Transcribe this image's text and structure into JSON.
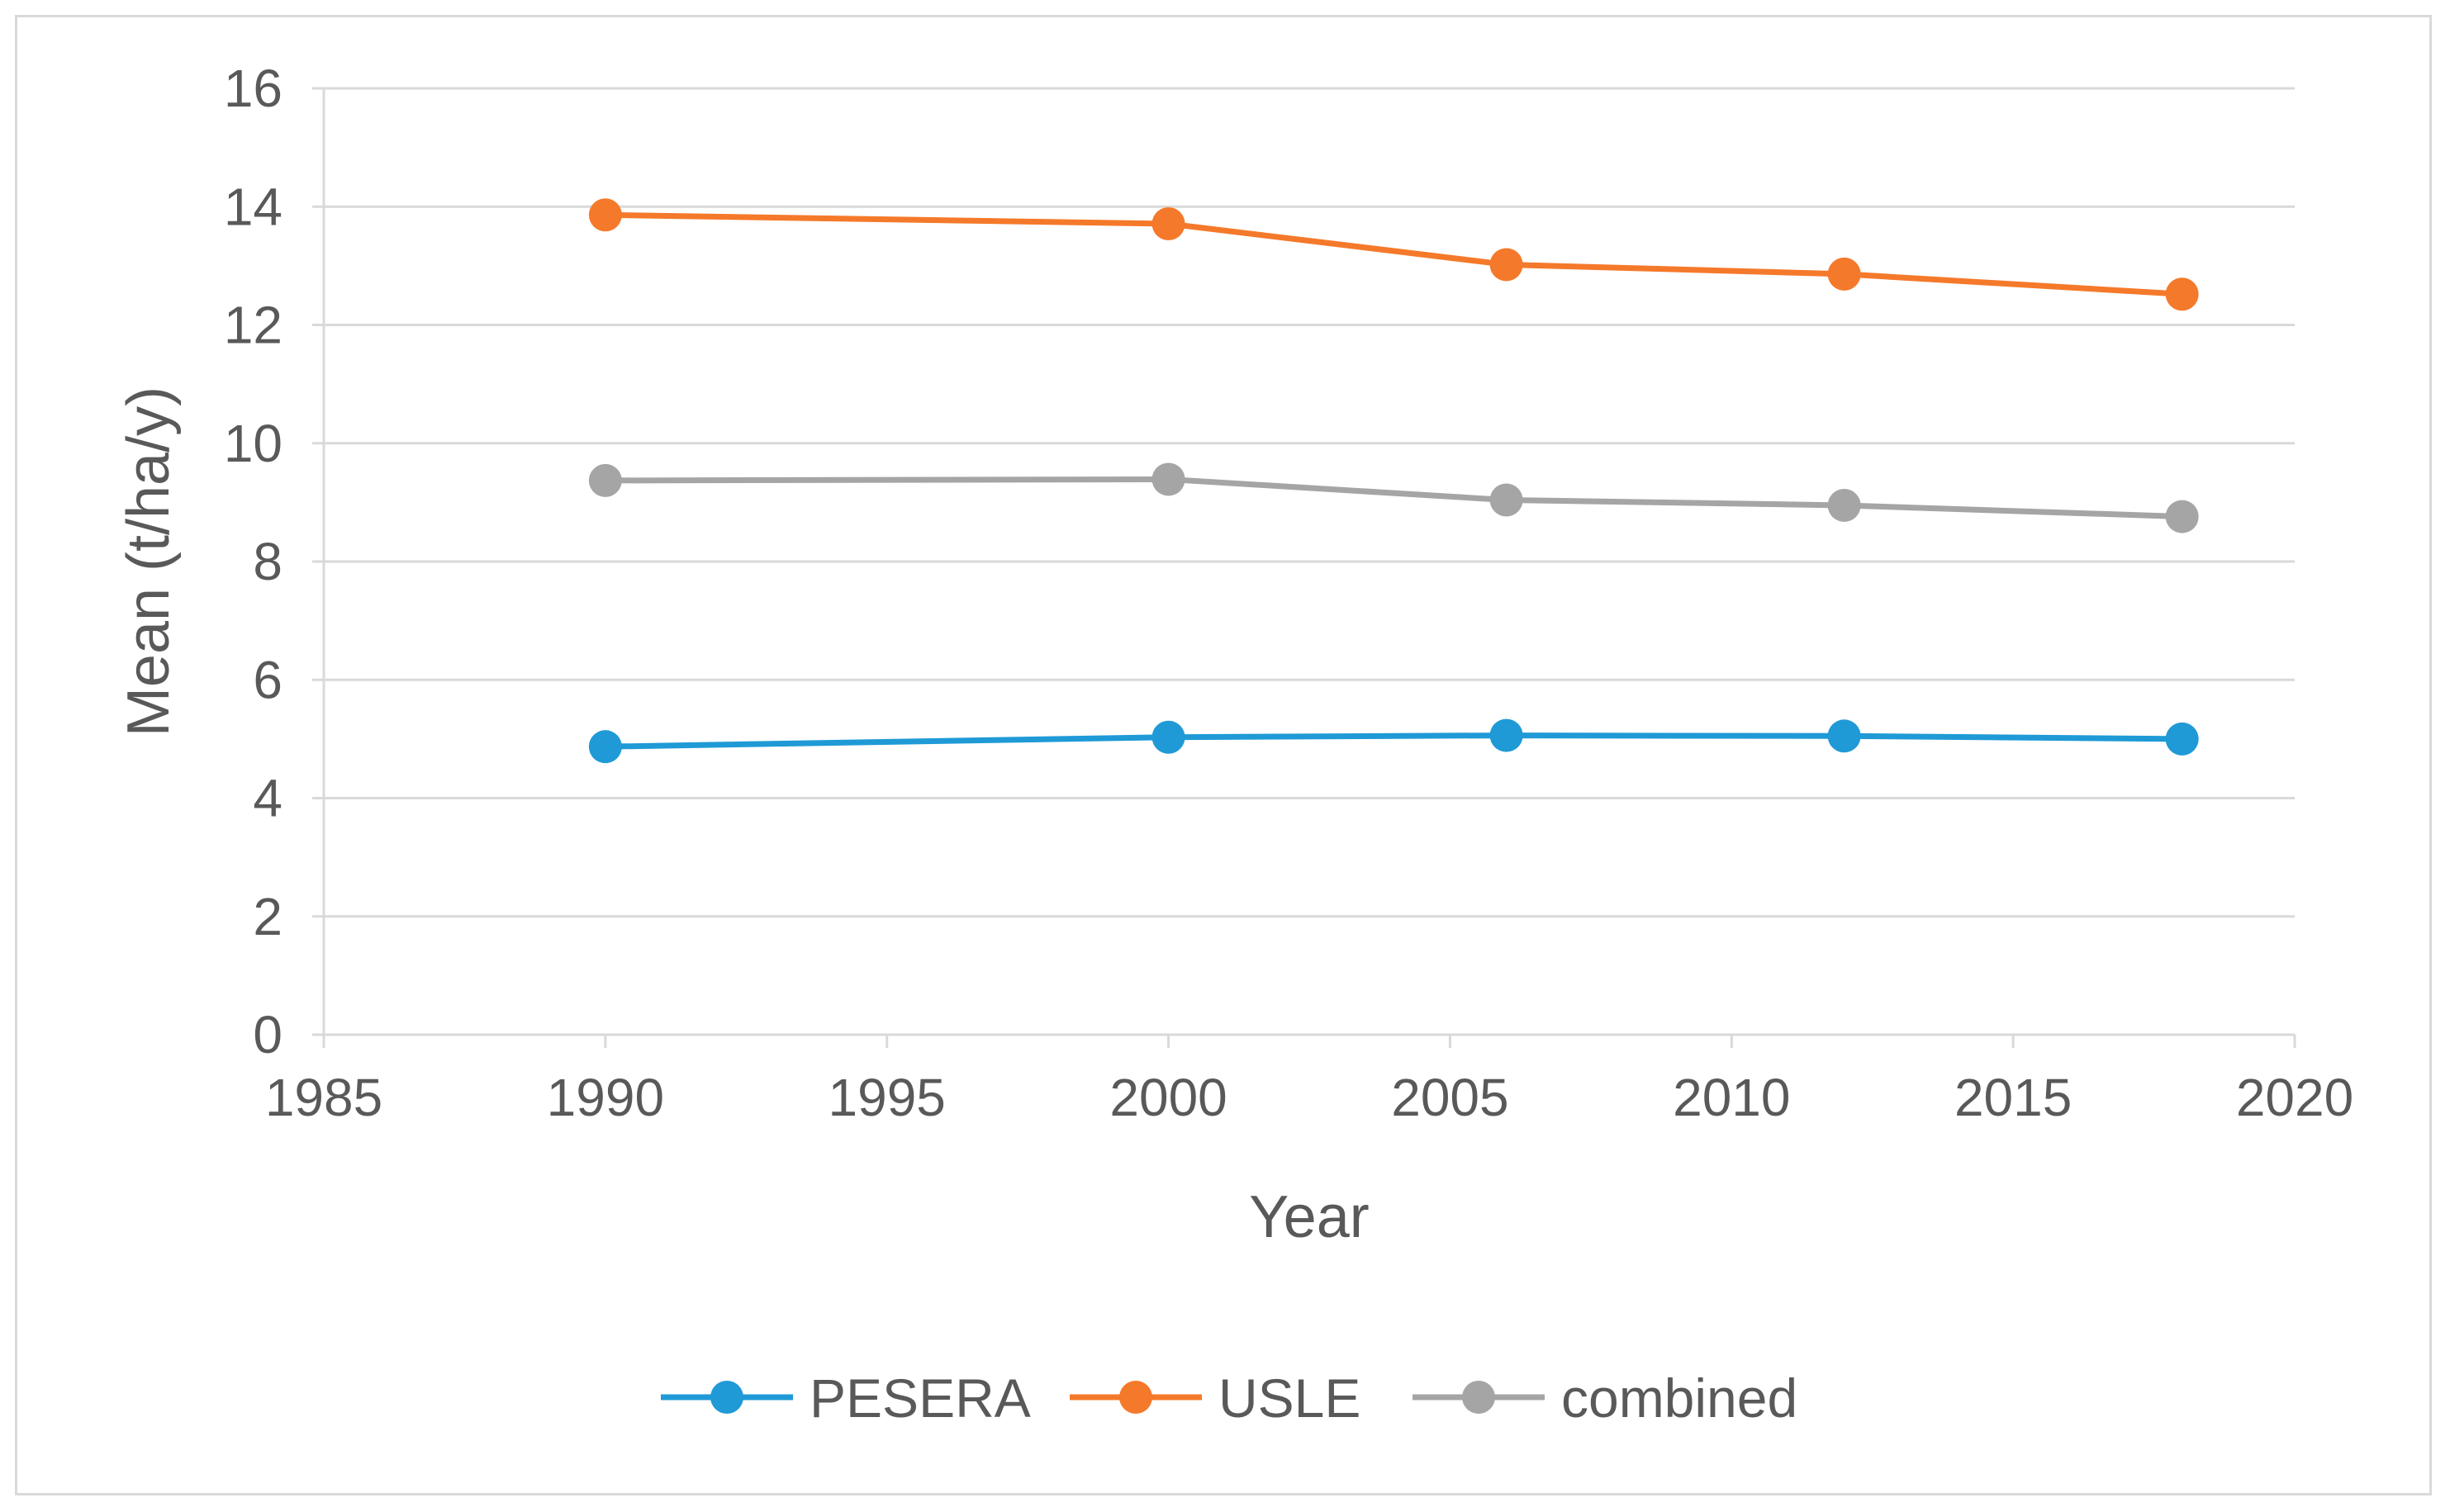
{
  "chart_data": {
    "type": "line",
    "title": "",
    "xlabel": "Year",
    "ylabel": "Mean (t/ha/y)",
    "xlim": [
      1985,
      2020
    ],
    "ylim": [
      0,
      16
    ],
    "xticks": [
      1985,
      1990,
      1995,
      2000,
      2005,
      2010,
      2015,
      2020
    ],
    "yticks": [
      0,
      2,
      4,
      6,
      8,
      10,
      12,
      14,
      16
    ],
    "grid": "horizontal",
    "legend_position": "bottom",
    "x": [
      1990,
      2000,
      2006,
      2012,
      2018
    ],
    "series": [
      {
        "name": "PESERA",
        "color": "#1f9ad6",
        "values": [
          4.87,
          5.03,
          5.06,
          5.05,
          5.0
        ]
      },
      {
        "name": "USLE",
        "color": "#f5792a",
        "values": [
          13.86,
          13.71,
          13.02,
          12.86,
          12.52
        ]
      },
      {
        "name": "combined",
        "color": "#a5a5a5",
        "values": [
          9.37,
          9.39,
          9.04,
          8.95,
          8.76
        ]
      }
    ]
  }
}
